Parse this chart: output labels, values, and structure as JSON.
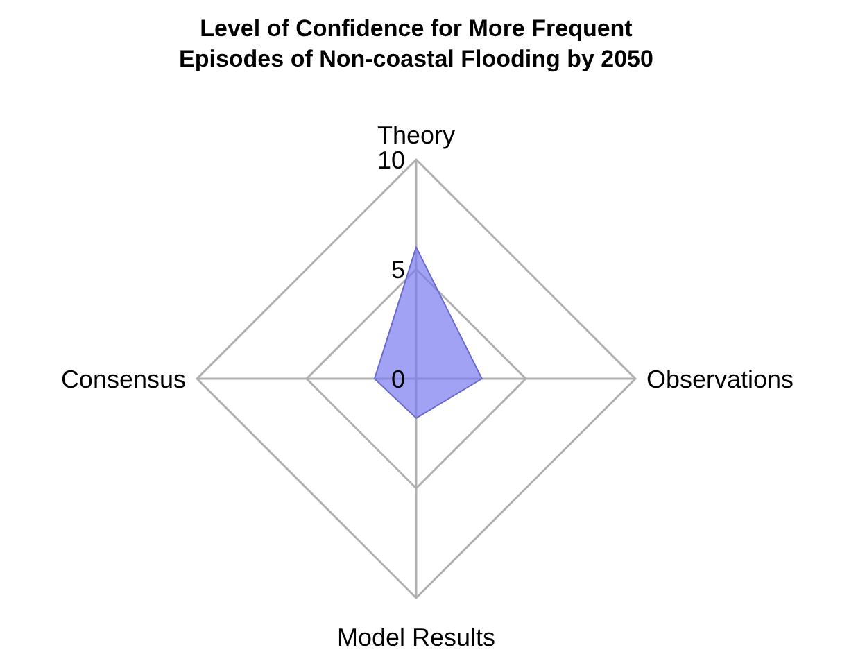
{
  "chart_data": {
    "type": "radar",
    "title": "Level of Confidence for More Frequent\nEpisodes of Non-coastal Flooding by 2050",
    "categories": [
      "Theory",
      "Observations",
      "Model Results",
      "Consensus"
    ],
    "series": [
      {
        "color": "#7b7bf0",
        "values": [
          6,
          3,
          1.8,
          1.9
        ]
      }
    ],
    "ylim": [
      0,
      10
    ],
    "yticks": [
      0,
      5,
      10
    ]
  }
}
